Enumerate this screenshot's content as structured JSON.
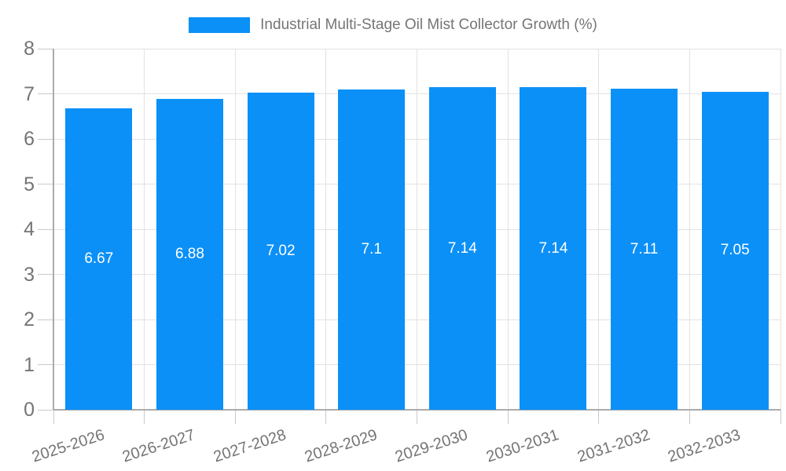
{
  "chart_data": {
    "type": "bar",
    "title": "Industrial Multi-Stage Oil Mist Collector Growth (%)",
    "categories": [
      "2025-2026",
      "2026-2027",
      "2027-2028",
      "2028-2029",
      "2029-2030",
      "2030-2031",
      "2031-2032",
      "2032-2033"
    ],
    "values": [
      6.67,
      6.88,
      7.02,
      7.1,
      7.14,
      7.14,
      7.11,
      7.05
    ],
    "xlabel": "",
    "ylabel": "",
    "ylim": [
      0,
      8
    ],
    "y_ticks": [
      0,
      1,
      2,
      3,
      4,
      5,
      6,
      7,
      8
    ],
    "grid": true,
    "legend_position": "top",
    "bar_label_position": "inside-center",
    "x_tick_rotation_deg": -18
  },
  "legend": {
    "label": "Industrial Multi-Stage Oil Mist Collector Growth (%)"
  },
  "colors": {
    "bar": "#0b90f8",
    "bar_label_text": "#ffffff",
    "axis_text": "#757575",
    "legend_text": "#757575",
    "gridline": "#e2e2e2",
    "axis_line": "#ababab",
    "tick": "#c9c9c9",
    "background": "#ffffff"
  }
}
